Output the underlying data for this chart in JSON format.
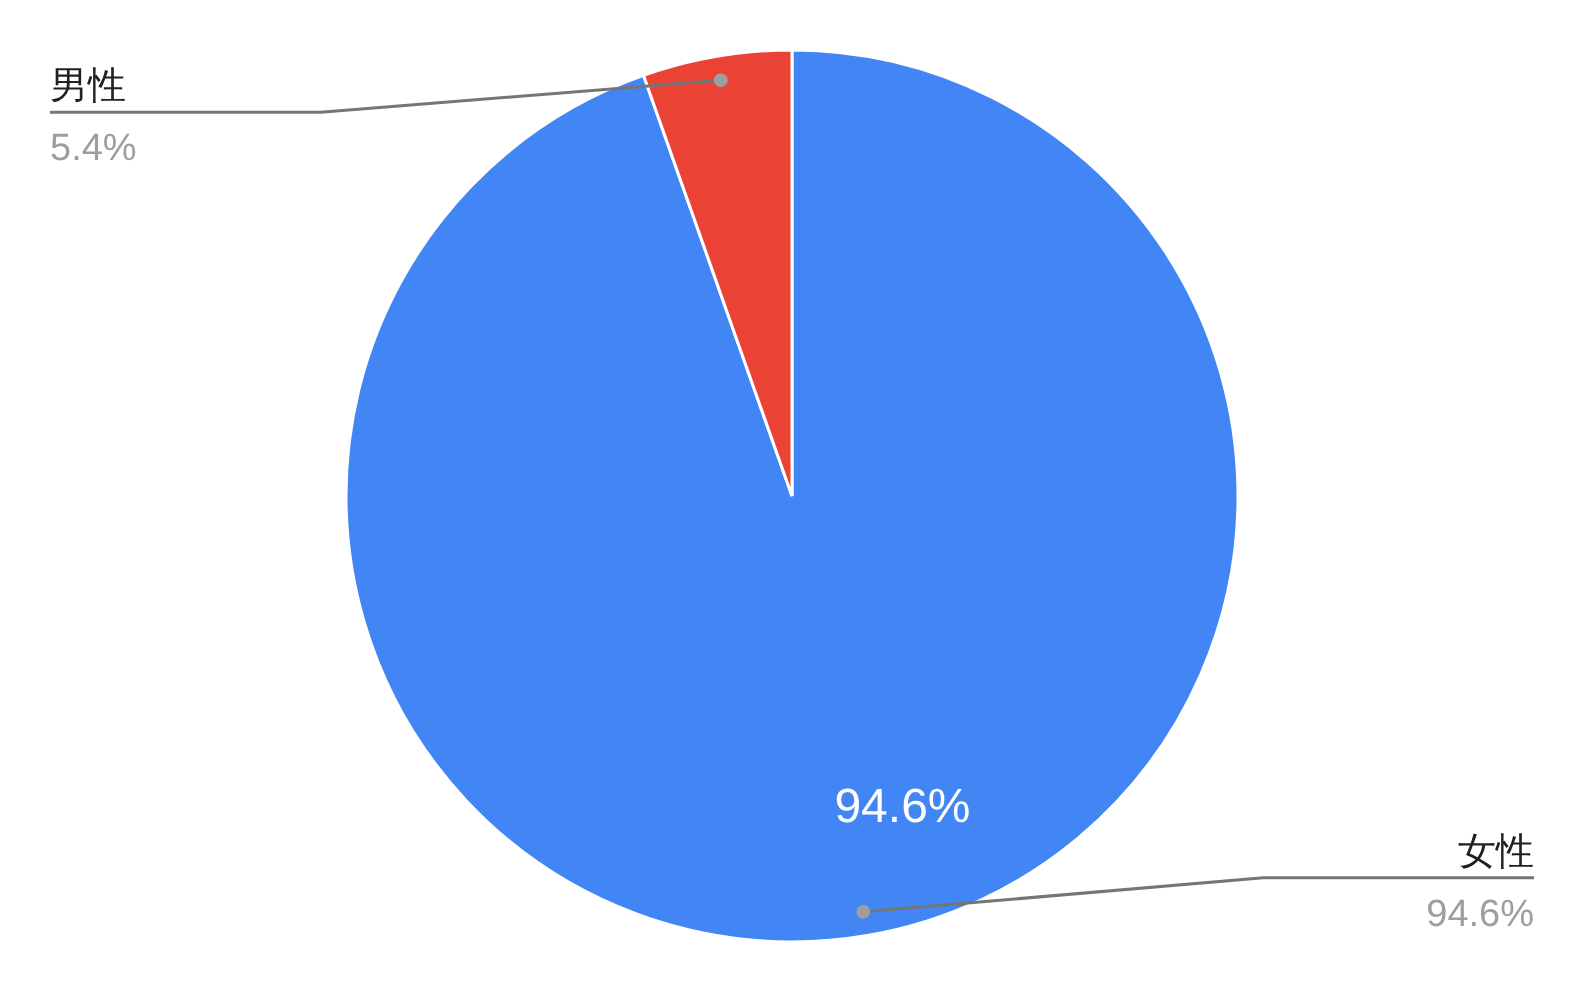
{
  "chart_data": {
    "type": "pie",
    "categories": [
      "女性",
      "男性"
    ],
    "values": [
      94.6,
      5.4
    ],
    "colors": [
      "#4285f4",
      "#ea4335"
    ],
    "value_labels": [
      "94.6%",
      "5.4%"
    ]
  }
}
